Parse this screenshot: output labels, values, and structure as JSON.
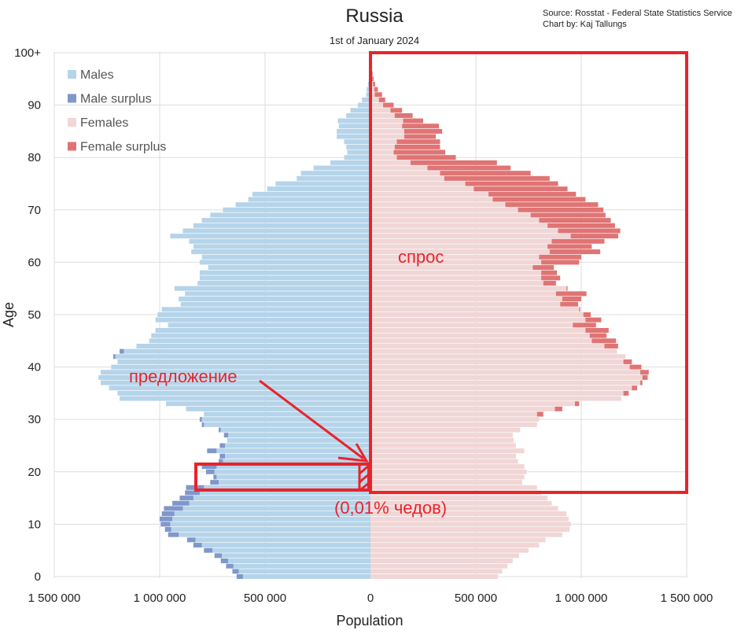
{
  "chart_data": {
    "type": "bar",
    "orientation": "horizontal-population-pyramid",
    "title": "Russia",
    "subtitle": "1st of January 2024",
    "source": "Source: Rosstat - Federal State Statistics Service",
    "credit": "Chart by: Kaj Tallungs",
    "xlabel": "Population",
    "ylabel": "Age",
    "x_ticks": [
      {
        "value": -1500000,
        "label": "1 500 000"
      },
      {
        "value": -1000000,
        "label": "1 000 000"
      },
      {
        "value": -500000,
        "label": "500 000"
      },
      {
        "value": 0,
        "label": "0"
      },
      {
        "value": 500000,
        "label": "500 000"
      },
      {
        "value": 1000000,
        "label": "1 000 000"
      },
      {
        "value": 1500000,
        "label": "1 500 000"
      }
    ],
    "y_ticks": [
      {
        "value": 0,
        "label": "0"
      },
      {
        "value": 10,
        "label": "10"
      },
      {
        "value": 20,
        "label": "20"
      },
      {
        "value": 30,
        "label": "30"
      },
      {
        "value": 40,
        "label": "40"
      },
      {
        "value": 50,
        "label": "50"
      },
      {
        "value": 60,
        "label": "60"
      },
      {
        "value": 70,
        "label": "70"
      },
      {
        "value": 80,
        "label": "80"
      },
      {
        "value": 90,
        "label": "90"
      },
      {
        "value": 100,
        "label": "100+"
      }
    ],
    "xlim": [
      -1500000,
      1500000
    ],
    "ylim": [
      0,
      100
    ],
    "grid": true,
    "legend_position": "top-left",
    "legend": [
      {
        "name": "Males",
        "color": "#b5d4ea"
      },
      {
        "name": "Male surplus",
        "color": "#7f97cb"
      },
      {
        "name": "Females",
        "color": "#f1d6d6"
      },
      {
        "name": "Female surplus",
        "color": "#e07474"
      }
    ],
    "ages": [
      0,
      1,
      2,
      3,
      4,
      5,
      6,
      7,
      8,
      9,
      10,
      11,
      12,
      13,
      14,
      15,
      16,
      17,
      18,
      19,
      20,
      21,
      22,
      23,
      24,
      25,
      26,
      27,
      28,
      29,
      30,
      31,
      32,
      33,
      34,
      35,
      36,
      37,
      38,
      39,
      40,
      41,
      42,
      43,
      44,
      45,
      46,
      47,
      48,
      49,
      50,
      51,
      52,
      53,
      54,
      55,
      56,
      57,
      58,
      59,
      60,
      61,
      62,
      63,
      64,
      65,
      66,
      67,
      68,
      69,
      70,
      71,
      72,
      73,
      74,
      75,
      76,
      77,
      78,
      79,
      80,
      81,
      82,
      83,
      84,
      85,
      86,
      87,
      88,
      89,
      90,
      91,
      92,
      93,
      94,
      95,
      96,
      97,
      98,
      99,
      100
    ],
    "series": [
      {
        "name": "Males",
        "values": [
          635000,
          655000,
          685000,
          710000,
          740000,
          790000,
          840000,
          870000,
          960000,
          975000,
          995000,
          1000000,
          990000,
          980000,
          940000,
          905000,
          880000,
          875000,
          760000,
          745000,
          780000,
          800000,
          720000,
          715000,
          775000,
          715000,
          680000,
          695000,
          720000,
          800000,
          810000,
          790000,
          875000,
          970000,
          1190000,
          1200000,
          1240000,
          1280000,
          1290000,
          1280000,
          1230000,
          1200000,
          1220000,
          1190000,
          1110000,
          1050000,
          1040000,
          1020000,
          960000,
          1020000,
          1010000,
          990000,
          900000,
          910000,
          880000,
          930000,
          820000,
          810000,
          810000,
          770000,
          810000,
          800000,
          850000,
          840000,
          860000,
          950000,
          890000,
          840000,
          800000,
          760000,
          700000,
          640000,
          580000,
          560000,
          490000,
          450000,
          350000,
          330000,
          270000,
          190000,
          125000,
          110000,
          115000,
          125000,
          160000,
          160000,
          150000,
          155000,
          115000,
          95000,
          60000,
          40000,
          20000,
          18000,
          12000,
          8000,
          6000,
          4000,
          3000,
          2000,
          1000
        ]
      },
      {
        "name": "Females",
        "values": [
          605000,
          625000,
          650000,
          675000,
          705000,
          750000,
          800000,
          830000,
          910000,
          945000,
          950000,
          940000,
          930000,
          890000,
          860000,
          840000,
          810000,
          790000,
          720000,
          730000,
          740000,
          730000,
          700000,
          690000,
          730000,
          690000,
          680000,
          675000,
          710000,
          790000,
          800000,
          820000,
          910000,
          990000,
          1190000,
          1225000,
          1265000,
          1290000,
          1315000,
          1320000,
          1285000,
          1240000,
          1210000,
          1170000,
          1175000,
          1165000,
          1120000,
          1130000,
          1070000,
          1095000,
          1045000,
          995000,
          985000,
          1000000,
          1025000,
          935000,
          880000,
          900000,
          885000,
          870000,
          990000,
          1000000,
          1090000,
          1050000,
          1110000,
          1175000,
          1185000,
          1160000,
          1140000,
          1115000,
          1105000,
          1080000,
          1020000,
          975000,
          935000,
          890000,
          850000,
          760000,
          665000,
          600000,
          405000,
          355000,
          330000,
          330000,
          310000,
          340000,
          325000,
          250000,
          200000,
          150000,
          110000,
          70000,
          55000,
          35000,
          22000,
          15000,
          10000,
          7000,
          5000,
          3000,
          2000
        ]
      }
    ]
  },
  "annotations": {
    "supply_label": "предложение",
    "demand_label": "спрос",
    "note_label": "(0,01% чедов)"
  }
}
